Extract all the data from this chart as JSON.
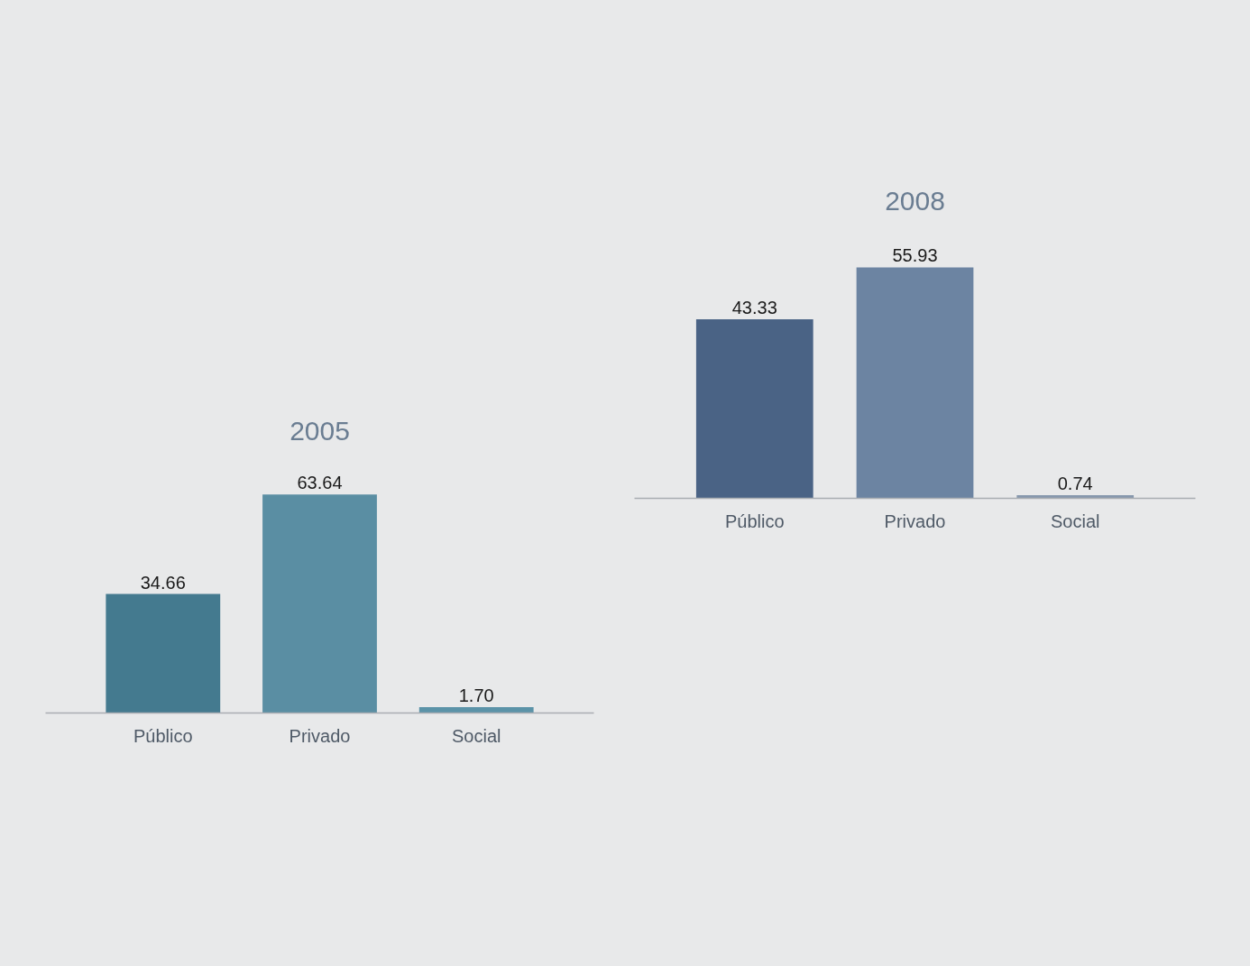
{
  "chart_data": [
    {
      "type": "bar",
      "title": "2005",
      "categories": [
        "Público",
        "Privado",
        "Social"
      ],
      "values": [
        34.66,
        63.64,
        1.7
      ],
      "value_labels": [
        "34.66",
        "63.64",
        "1.70"
      ],
      "colors": [
        "#447a8f",
        "#5a8ea3",
        "#5b93a8"
      ]
    },
    {
      "type": "bar",
      "title": "2008",
      "categories": [
        "Público",
        "Privado",
        "Social"
      ],
      "values": [
        43.33,
        55.93,
        0.74
      ],
      "value_labels": [
        "43.33",
        "55.93",
        "0.74"
      ],
      "colors": [
        "#4a6385",
        "#6c84a2",
        "#8798ad"
      ]
    }
  ]
}
